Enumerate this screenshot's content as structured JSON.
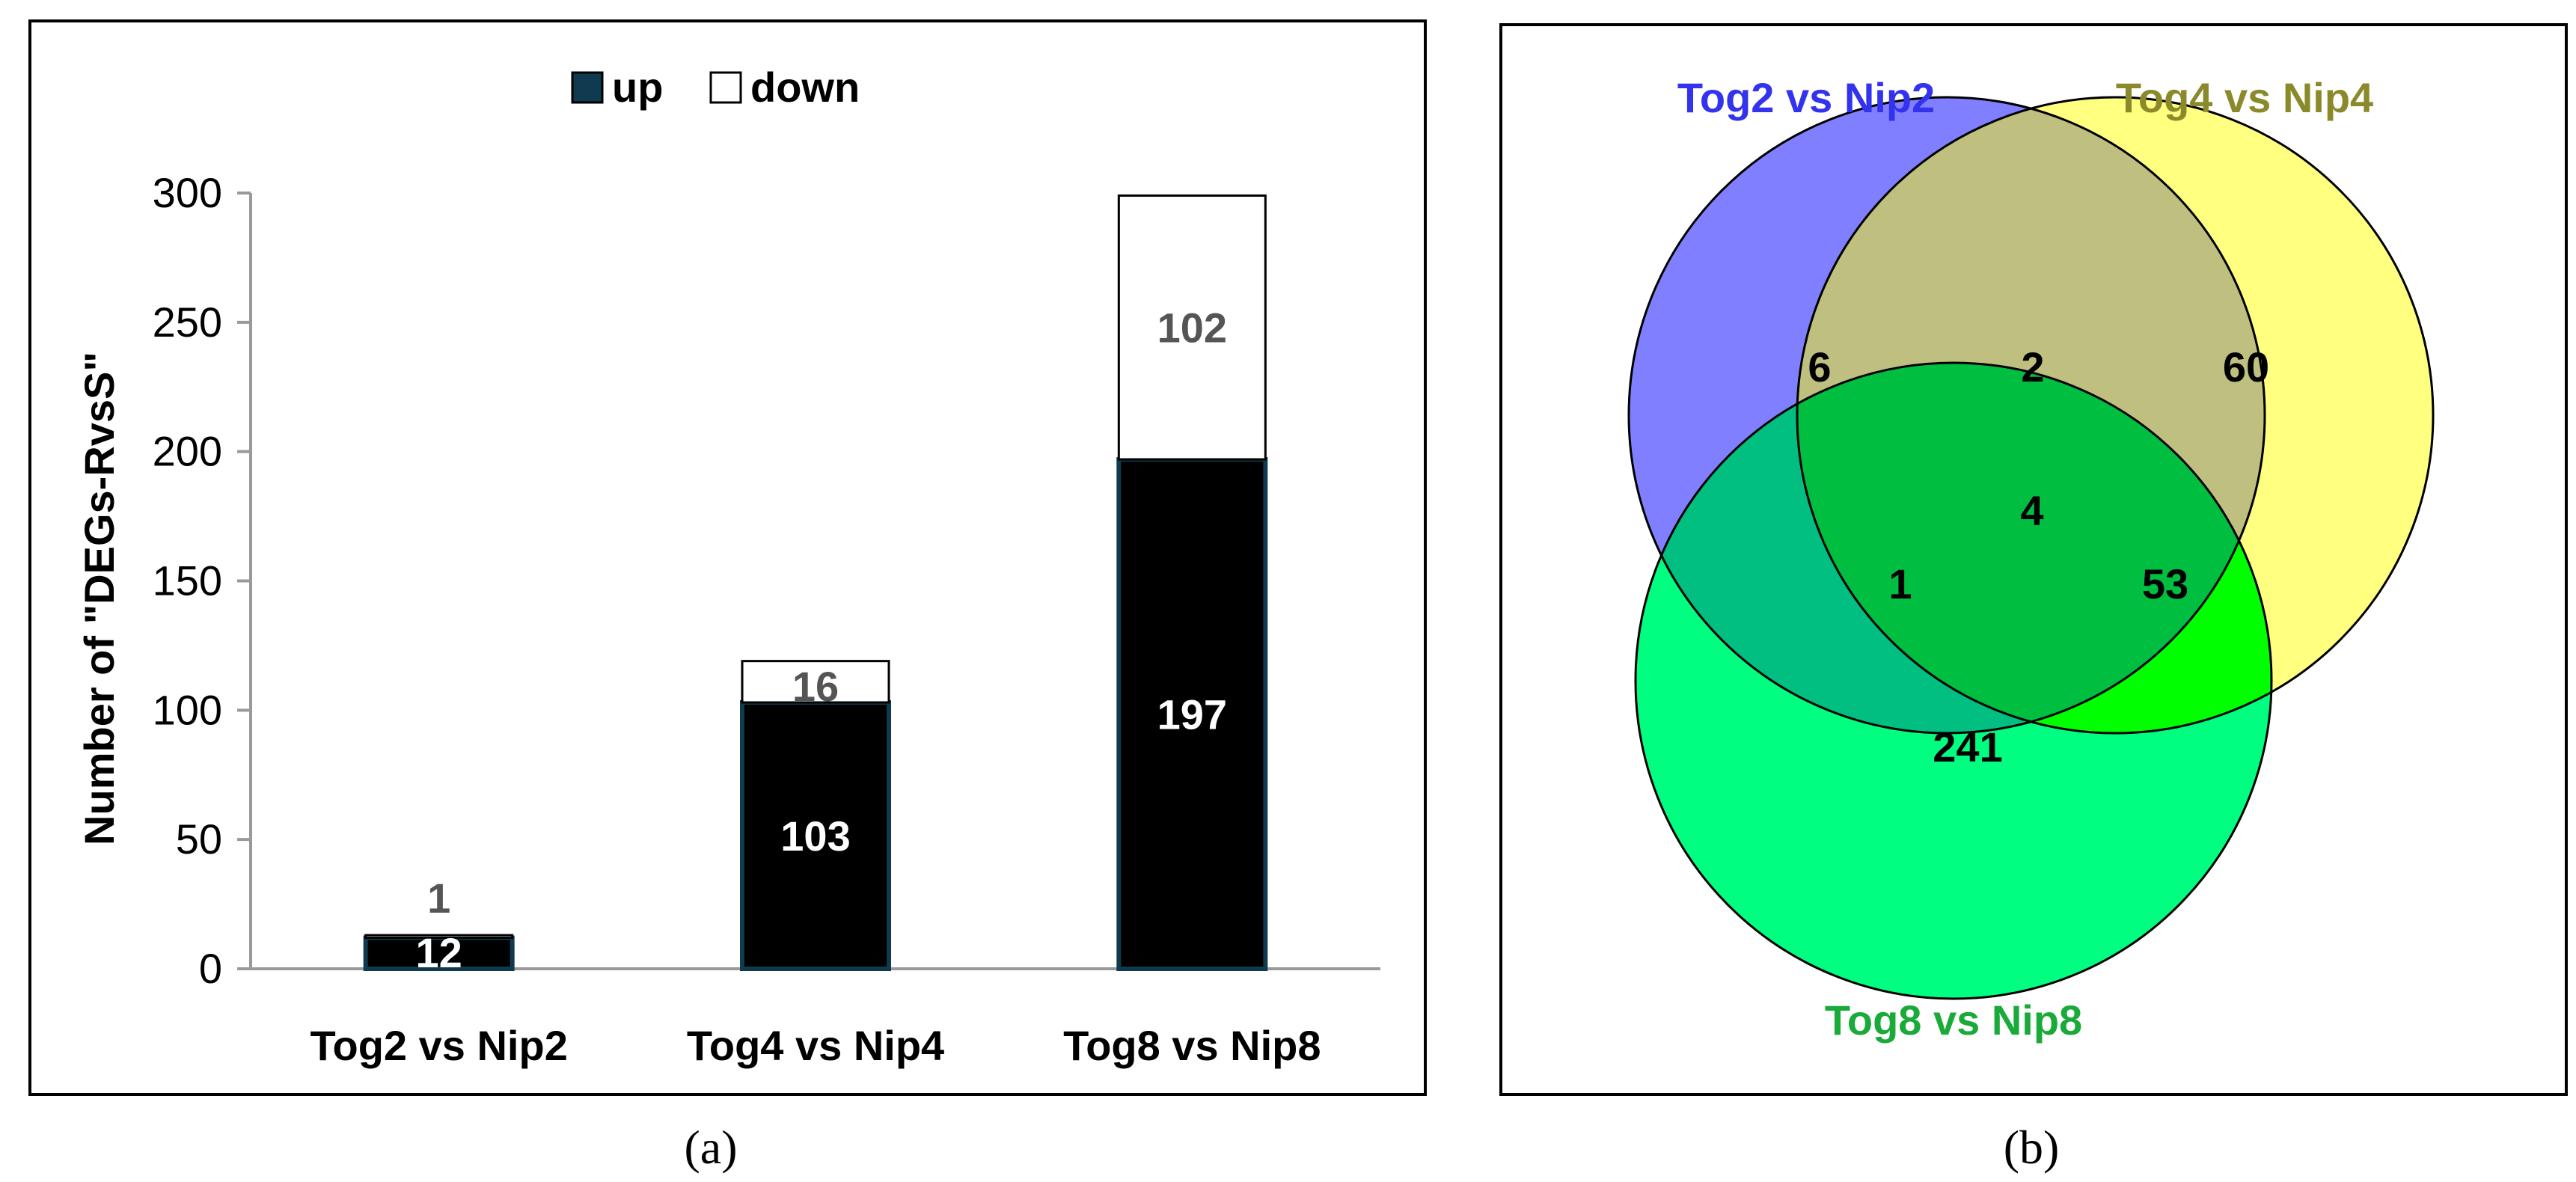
{
  "chart_data": [
    {
      "type": "bar",
      "stacked": true,
      "categories": [
        "Tog2 vs Nip2",
        "Tog4 vs Nip4",
        "Tog8 vs Nip8"
      ],
      "series": [
        {
          "name": "up",
          "values": [
            12,
            103,
            197
          ],
          "color": "#000000"
        },
        {
          "name": "down",
          "values": [
            1,
            16,
            102
          ],
          "color": "#ffffff"
        }
      ],
      "ylabel": "Number of \"DEGs-RvsS\"",
      "ylim": [
        0,
        300
      ],
      "yticks": [
        0,
        50,
        100,
        150,
        200,
        250,
        300
      ],
      "legend": "top",
      "grid": false,
      "panel_label": "(a)"
    },
    {
      "type": "venn",
      "sets": [
        {
          "name": "Tog2 vs Nip2",
          "label_color": "#3333ee",
          "fill": "#7f7fff"
        },
        {
          "name": "Tog4 vs Nip4",
          "label_color": "#8a8a2a",
          "fill": "#ffff80"
        },
        {
          "name": "Tog8 vs Nip8",
          "label_color": "#1aaa3a",
          "fill": "#00ff80"
        }
      ],
      "regions": {
        "only_A": "6",
        "only_B": "60",
        "only_C": "241",
        "A_B": "2",
        "A_C": "1",
        "B_C": "53",
        "A_B_C": "4"
      },
      "region_colors": {
        "A_B": "#bfbf80",
        "A_C": "#00bf80",
        "B_C": "#00ff00",
        "A_B_C": "#00bf40"
      },
      "panel_label": "(b)"
    }
  ]
}
